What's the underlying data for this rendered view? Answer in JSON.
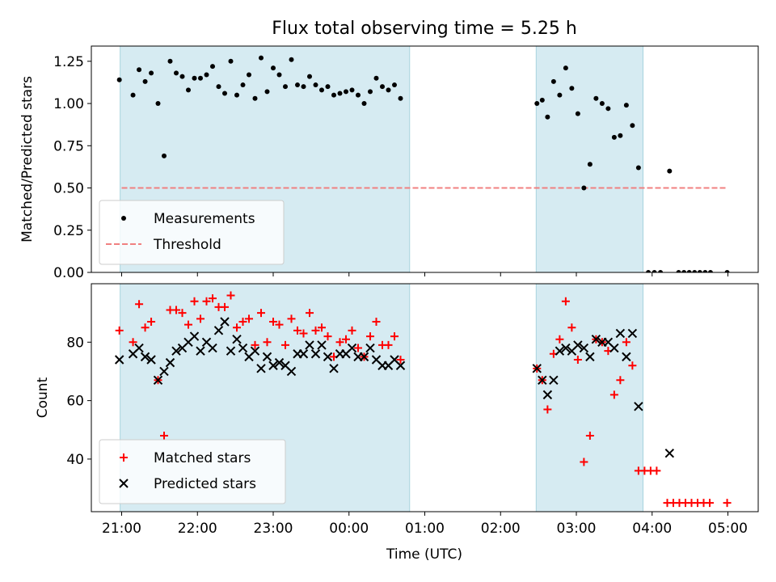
{
  "chart_data": [
    {
      "type": "scatter",
      "title": "Flux total observing time = 5.25 h",
      "xlabel": "",
      "ylabel": "Matched/Predicted stars",
      "xlim_hours": [
        -0.4,
        8.4
      ],
      "ylim": [
        0,
        1.34
      ],
      "x_ticks": [
        {
          "h": 0,
          "label": "21:00"
        },
        {
          "h": 1,
          "label": "22:00"
        },
        {
          "h": 2,
          "label": "23:00"
        },
        {
          "h": 3,
          "label": "00:00"
        },
        {
          "h": 4,
          "label": "01:00"
        },
        {
          "h": 5,
          "label": "02:00"
        },
        {
          "h": 6,
          "label": "03:00"
        },
        {
          "h": 7,
          "label": "04:00"
        },
        {
          "h": 8,
          "label": "05:00"
        }
      ],
      "y_ticks": [
        "0.00",
        "0.25",
        "0.50",
        "0.75",
        "1.00",
        "1.25"
      ],
      "y_tick_values": [
        0,
        0.25,
        0.5,
        0.75,
        1.0,
        1.25
      ],
      "shaded_spans_hours": [
        [
          -0.02,
          3.8
        ],
        [
          5.47,
          6.88
        ]
      ],
      "threshold": {
        "value": 0.5,
        "x_range_hours": [
          0,
          8.0
        ],
        "color": "#f08080"
      },
      "legend": {
        "position": "lower-left",
        "entries": [
          {
            "label": "Measurements",
            "marker": "dot",
            "color": "#000000"
          },
          {
            "label": "Threshold",
            "marker": "dashed-line",
            "color": "#f08080"
          }
        ]
      },
      "series": [
        {
          "name": "Measurements",
          "points": [
            [
              -0.03,
              1.14
            ],
            [
              0.15,
              1.05
            ],
            [
              0.23,
              1.2
            ],
            [
              0.31,
              1.13
            ],
            [
              0.39,
              1.18
            ],
            [
              0.48,
              1.0
            ],
            [
              0.56,
              0.69
            ],
            [
              0.64,
              1.25
            ],
            [
              0.72,
              1.18
            ],
            [
              0.8,
              1.16
            ],
            [
              0.88,
              1.08
            ],
            [
              0.96,
              1.15
            ],
            [
              1.04,
              1.15
            ],
            [
              1.12,
              1.17
            ],
            [
              1.2,
              1.22
            ],
            [
              1.28,
              1.1
            ],
            [
              1.36,
              1.06
            ],
            [
              1.44,
              1.25
            ],
            [
              1.52,
              1.05
            ],
            [
              1.6,
              1.11
            ],
            [
              1.68,
              1.17
            ],
            [
              1.76,
              1.03
            ],
            [
              1.84,
              1.27
            ],
            [
              1.92,
              1.07
            ],
            [
              2.0,
              1.21
            ],
            [
              2.08,
              1.17
            ],
            [
              2.16,
              1.1
            ],
            [
              2.24,
              1.26
            ],
            [
              2.32,
              1.11
            ],
            [
              2.4,
              1.1
            ],
            [
              2.48,
              1.16
            ],
            [
              2.56,
              1.11
            ],
            [
              2.64,
              1.08
            ],
            [
              2.72,
              1.1
            ],
            [
              2.8,
              1.05
            ],
            [
              2.88,
              1.06
            ],
            [
              2.96,
              1.07
            ],
            [
              3.04,
              1.08
            ],
            [
              3.12,
              1.05
            ],
            [
              3.2,
              1.0
            ],
            [
              3.28,
              1.07
            ],
            [
              3.36,
              1.15
            ],
            [
              3.44,
              1.1
            ],
            [
              3.52,
              1.08
            ],
            [
              3.6,
              1.11
            ],
            [
              3.68,
              1.03
            ],
            [
              5.48,
              1.0
            ],
            [
              5.55,
              1.02
            ],
            [
              5.62,
              0.92
            ],
            [
              5.7,
              1.13
            ],
            [
              5.78,
              1.05
            ],
            [
              5.86,
              1.21
            ],
            [
              5.94,
              1.09
            ],
            [
              6.02,
              0.94
            ],
            [
              6.1,
              0.5
            ],
            [
              6.18,
              0.64
            ],
            [
              6.26,
              1.03
            ],
            [
              6.34,
              1.0
            ],
            [
              6.42,
              0.97
            ],
            [
              6.5,
              0.8
            ],
            [
              6.58,
              0.81
            ],
            [
              6.66,
              0.99
            ],
            [
              6.74,
              0.87
            ],
            [
              6.82,
              0.62
            ],
            [
              6.95,
              0.0
            ],
            [
              7.03,
              0.0
            ],
            [
              7.11,
              0.0
            ],
            [
              7.23,
              0.6
            ],
            [
              7.35,
              0.0
            ],
            [
              7.42,
              0.0
            ],
            [
              7.49,
              0.0
            ],
            [
              7.56,
              0.0
            ],
            [
              7.63,
              0.0
            ],
            [
              7.7,
              0.0
            ],
            [
              7.77,
              0.0
            ],
            [
              7.99,
              0.0
            ]
          ]
        }
      ]
    },
    {
      "type": "scatter",
      "title": "",
      "xlabel": "Time (UTC)",
      "ylabel": "Count",
      "xlim_hours": [
        -0.4,
        8.4
      ],
      "ylim": [
        22,
        100
      ],
      "x_ticks": [
        {
          "h": 0,
          "label": "21:00"
        },
        {
          "h": 1,
          "label": "22:00"
        },
        {
          "h": 2,
          "label": "23:00"
        },
        {
          "h": 3,
          "label": "00:00"
        },
        {
          "h": 4,
          "label": "01:00"
        },
        {
          "h": 5,
          "label": "02:00"
        },
        {
          "h": 6,
          "label": "03:00"
        },
        {
          "h": 7,
          "label": "04:00"
        },
        {
          "h": 8,
          "label": "05:00"
        }
      ],
      "y_ticks": [
        "40",
        "60",
        "80"
      ],
      "y_tick_values": [
        40,
        60,
        80
      ],
      "shaded_spans_hours": [
        [
          -0.02,
          3.8
        ],
        [
          5.47,
          6.88
        ]
      ],
      "legend": {
        "position": "lower-left",
        "entries": [
          {
            "label": "Matched stars",
            "marker": "plus",
            "color": "#ff0000"
          },
          {
            "label": "Predicted stars",
            "marker": "x",
            "color": "#000000"
          }
        ]
      },
      "series": [
        {
          "name": "Matched stars",
          "points": [
            [
              -0.03,
              84
            ],
            [
              0.15,
              80
            ],
            [
              0.23,
              93
            ],
            [
              0.31,
              85
            ],
            [
              0.39,
              87
            ],
            [
              0.48,
              67
            ],
            [
              0.56,
              48
            ],
            [
              0.64,
              91
            ],
            [
              0.72,
              91
            ],
            [
              0.8,
              90
            ],
            [
              0.88,
              86
            ],
            [
              0.96,
              94
            ],
            [
              1.04,
              88
            ],
            [
              1.12,
              94
            ],
            [
              1.2,
              95
            ],
            [
              1.28,
              92
            ],
            [
              1.36,
              92
            ],
            [
              1.44,
              96
            ],
            [
              1.52,
              85
            ],
            [
              1.6,
              87
            ],
            [
              1.68,
              88
            ],
            [
              1.76,
              79
            ],
            [
              1.84,
              90
            ],
            [
              1.92,
              80
            ],
            [
              2.0,
              87
            ],
            [
              2.08,
              86
            ],
            [
              2.16,
              79
            ],
            [
              2.24,
              88
            ],
            [
              2.32,
              84
            ],
            [
              2.4,
              83
            ],
            [
              2.48,
              90
            ],
            [
              2.56,
              84
            ],
            [
              2.64,
              85
            ],
            [
              2.72,
              82
            ],
            [
              2.8,
              75
            ],
            [
              2.88,
              80
            ],
            [
              2.96,
              81
            ],
            [
              3.04,
              84
            ],
            [
              3.12,
              78
            ],
            [
              3.2,
              75
            ],
            [
              3.28,
              82
            ],
            [
              3.36,
              87
            ],
            [
              3.44,
              79
            ],
            [
              3.52,
              79
            ],
            [
              3.6,
              82
            ],
            [
              3.68,
              74
            ],
            [
              5.48,
              71
            ],
            [
              5.55,
              67
            ],
            [
              5.62,
              57
            ],
            [
              5.7,
              76
            ],
            [
              5.78,
              81
            ],
            [
              5.86,
              94
            ],
            [
              5.94,
              85
            ],
            [
              6.02,
              74
            ],
            [
              6.1,
              39
            ],
            [
              6.18,
              48
            ],
            [
              6.26,
              81
            ],
            [
              6.34,
              80
            ],
            [
              6.42,
              77
            ],
            [
              6.5,
              62
            ],
            [
              6.58,
              67
            ],
            [
              6.66,
              80
            ],
            [
              6.74,
              72
            ],
            [
              6.82,
              36
            ],
            [
              6.9,
              36
            ],
            [
              6.98,
              36
            ],
            [
              7.06,
              36
            ],
            [
              7.2,
              25
            ],
            [
              7.28,
              25
            ],
            [
              7.36,
              25
            ],
            [
              7.44,
              25
            ],
            [
              7.52,
              25
            ],
            [
              7.6,
              25
            ],
            [
              7.68,
              25
            ],
            [
              7.76,
              25
            ],
            [
              7.99,
              25
            ]
          ]
        },
        {
          "name": "Predicted stars",
          "points": [
            [
              -0.03,
              74
            ],
            [
              0.15,
              76
            ],
            [
              0.23,
              78
            ],
            [
              0.31,
              75
            ],
            [
              0.39,
              74
            ],
            [
              0.48,
              67
            ],
            [
              0.56,
              70
            ],
            [
              0.64,
              73
            ],
            [
              0.72,
              77
            ],
            [
              0.8,
              78
            ],
            [
              0.88,
              80
            ],
            [
              0.96,
              82
            ],
            [
              1.04,
              77
            ],
            [
              1.12,
              80
            ],
            [
              1.2,
              78
            ],
            [
              1.28,
              84
            ],
            [
              1.36,
              87
            ],
            [
              1.44,
              77
            ],
            [
              1.52,
              81
            ],
            [
              1.6,
              78
            ],
            [
              1.68,
              75
            ],
            [
              1.76,
              77
            ],
            [
              1.84,
              71
            ],
            [
              1.92,
              75
            ],
            [
              2.0,
              72
            ],
            [
              2.08,
              73
            ],
            [
              2.16,
              72
            ],
            [
              2.24,
              70
            ],
            [
              2.32,
              76
            ],
            [
              2.4,
              76
            ],
            [
              2.48,
              79
            ],
            [
              2.56,
              76
            ],
            [
              2.64,
              79
            ],
            [
              2.72,
              75
            ],
            [
              2.8,
              71
            ],
            [
              2.88,
              76
            ],
            [
              2.96,
              76
            ],
            [
              3.04,
              78
            ],
            [
              3.12,
              75
            ],
            [
              3.2,
              75
            ],
            [
              3.28,
              78
            ],
            [
              3.36,
              74
            ],
            [
              3.44,
              72
            ],
            [
              3.52,
              72
            ],
            [
              3.6,
              74
            ],
            [
              3.68,
              72
            ],
            [
              5.48,
              71
            ],
            [
              5.55,
              67
            ],
            [
              5.62,
              62
            ],
            [
              5.7,
              67
            ],
            [
              5.78,
              77
            ],
            [
              5.86,
              78
            ],
            [
              5.94,
              77
            ],
            [
              6.02,
              79
            ],
            [
              6.1,
              78
            ],
            [
              6.18,
              75
            ],
            [
              6.26,
              81
            ],
            [
              6.34,
              80
            ],
            [
              6.42,
              80
            ],
            [
              6.5,
              78
            ],
            [
              6.58,
              83
            ],
            [
              6.66,
              75
            ],
            [
              6.74,
              83
            ],
            [
              6.82,
              58
            ],
            [
              7.23,
              42
            ]
          ]
        }
      ]
    }
  ]
}
